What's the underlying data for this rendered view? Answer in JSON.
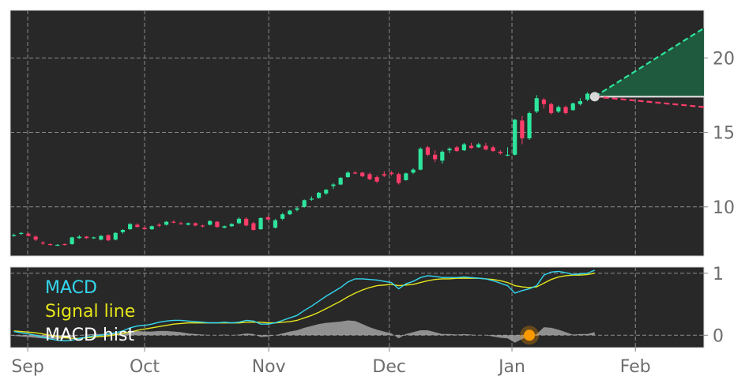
{
  "chart_data": [
    {
      "type": "candlestick",
      "x_ticks": [
        "Sep",
        "Oct",
        "Nov",
        "Dec",
        "Jan",
        "Feb"
      ],
      "y_ticks": [
        10,
        15,
        20
      ],
      "ylim": [
        6.7,
        23.2
      ],
      "grid": true,
      "colors": {
        "up": "#2ee59d",
        "down": "#ff3d6a",
        "background": "#282828",
        "grid": "#8a8a8a",
        "projection_up": "#2ee59d",
        "projection_down": "#ff3d6a",
        "projection_fill": "#1f5a3e"
      },
      "candles": [
        [
          8.1,
          8.2,
          8.0,
          8.1
        ],
        [
          8.2,
          8.3,
          8.1,
          8.25
        ],
        [
          8.2,
          8.25,
          8.0,
          8.05
        ],
        [
          8.0,
          8.1,
          7.7,
          7.8
        ],
        [
          7.6,
          7.7,
          7.45,
          7.55
        ],
        [
          7.5,
          7.55,
          7.4,
          7.45
        ],
        [
          7.45,
          7.5,
          7.4,
          7.45
        ],
        [
          7.5,
          7.55,
          7.4,
          7.45
        ],
        [
          7.5,
          8.0,
          7.45,
          7.95
        ],
        [
          7.9,
          8.1,
          7.85,
          8.0
        ],
        [
          8.0,
          8.05,
          7.85,
          7.9
        ],
        [
          7.95,
          8.0,
          7.85,
          7.95
        ],
        [
          7.8,
          8.1,
          7.75,
          8.05
        ],
        [
          8.1,
          8.15,
          7.7,
          7.75
        ],
        [
          7.8,
          8.3,
          7.75,
          8.25
        ],
        [
          8.3,
          8.5,
          8.2,
          8.45
        ],
        [
          8.5,
          8.9,
          8.45,
          8.85
        ],
        [
          8.8,
          8.9,
          8.6,
          8.65
        ],
        [
          8.6,
          8.7,
          8.45,
          8.5
        ],
        [
          8.5,
          8.75,
          8.45,
          8.7
        ],
        [
          8.8,
          8.9,
          8.65,
          8.75
        ],
        [
          8.8,
          9.05,
          8.75,
          9.0
        ],
        [
          9.0,
          9.1,
          8.9,
          8.95
        ],
        [
          8.9,
          9.0,
          8.8,
          8.85
        ],
        [
          8.8,
          8.95,
          8.75,
          8.9
        ],
        [
          8.9,
          8.95,
          8.7,
          8.75
        ],
        [
          8.75,
          8.8,
          8.6,
          8.7
        ],
        [
          8.8,
          9.1,
          8.75,
          9.05
        ],
        [
          9.0,
          9.05,
          8.6,
          8.65
        ],
        [
          8.6,
          8.75,
          8.55,
          8.7
        ],
        [
          8.7,
          8.9,
          8.65,
          8.85
        ],
        [
          8.9,
          9.3,
          8.85,
          9.2
        ],
        [
          9.2,
          9.3,
          8.7,
          8.75
        ],
        [
          8.9,
          9.0,
          8.4,
          8.45
        ],
        [
          8.5,
          9.3,
          8.45,
          9.25
        ],
        [
          9.3,
          9.4,
          9.1,
          9.15
        ],
        [
          8.6,
          9.2,
          8.55,
          9.1
        ],
        [
          9.2,
          9.6,
          9.1,
          9.5
        ],
        [
          9.5,
          9.8,
          9.45,
          9.75
        ],
        [
          9.8,
          10.0,
          9.7,
          9.9
        ],
        [
          10.0,
          10.5,
          9.95,
          10.45
        ],
        [
          10.5,
          10.7,
          10.4,
          10.55
        ],
        [
          10.6,
          11.0,
          10.55,
          10.95
        ],
        [
          10.9,
          11.2,
          10.8,
          11.15
        ],
        [
          11.4,
          11.6,
          11.2,
          11.5
        ],
        [
          11.5,
          12.0,
          11.45,
          11.95
        ],
        [
          12.0,
          12.4,
          11.95,
          12.3
        ],
        [
          12.3,
          12.4,
          12.2,
          12.25
        ],
        [
          12.3,
          12.35,
          12.0,
          12.05
        ],
        [
          12.2,
          12.3,
          11.8,
          11.85
        ],
        [
          12.0,
          12.1,
          11.6,
          11.7
        ],
        [
          12.2,
          12.4,
          12.0,
          12.1
        ],
        [
          12.3,
          12.4,
          12.1,
          12.2
        ],
        [
          12.2,
          12.3,
          11.5,
          11.6
        ],
        [
          11.8,
          12.3,
          11.75,
          12.25
        ],
        [
          12.3,
          12.6,
          12.2,
          12.5
        ],
        [
          12.5,
          14.0,
          12.45,
          13.9
        ],
        [
          14.0,
          14.1,
          13.4,
          13.5
        ],
        [
          13.5,
          13.8,
          13.0,
          13.2
        ],
        [
          13.1,
          13.8,
          12.9,
          13.7
        ],
        [
          13.8,
          14.0,
          13.6,
          13.9
        ],
        [
          14.0,
          14.1,
          13.7,
          13.75
        ],
        [
          13.8,
          14.3,
          13.75,
          14.2
        ],
        [
          14.1,
          14.3,
          13.9,
          13.95
        ],
        [
          14.0,
          14.3,
          13.95,
          14.2
        ],
        [
          14.1,
          14.3,
          13.8,
          13.85
        ],
        [
          14.0,
          14.1,
          13.7,
          13.75
        ],
        [
          13.7,
          13.8,
          13.5,
          13.6
        ],
        [
          13.5,
          14.0,
          13.4,
          13.5
        ],
        [
          13.5,
          15.9,
          13.45,
          15.85
        ],
        [
          15.8,
          16.1,
          14.2,
          14.6
        ],
        [
          14.6,
          16.4,
          14.5,
          16.3
        ],
        [
          16.4,
          17.5,
          16.3,
          17.3
        ],
        [
          17.2,
          17.3,
          16.6,
          16.9
        ],
        [
          16.9,
          17.0,
          16.2,
          16.3
        ],
        [
          16.4,
          16.8,
          16.3,
          16.7
        ],
        [
          16.7,
          16.8,
          16.2,
          16.3
        ],
        [
          16.5,
          17.0,
          16.45,
          16.95
        ],
        [
          16.9,
          17.3,
          16.8,
          17.1
        ],
        [
          17.2,
          17.7,
          17.1,
          17.6
        ],
        [
          17.6,
          17.7,
          17.3,
          17.4
        ]
      ],
      "last_price": 17.4,
      "projection": {
        "start_index": 80.5,
        "end_index": 106,
        "upper": 22.0,
        "lower": 16.7,
        "level": 17.4
      }
    },
    {
      "type": "line",
      "x_ticks": [
        "Sep",
        "Oct",
        "Nov",
        "Dec",
        "Jan",
        "Feb"
      ],
      "y_ticks": [
        0,
        1
      ],
      "ylim": [
        -0.2,
        1.1
      ],
      "grid": true,
      "series": [
        {
          "name": "MACD",
          "color": "#33d7ef",
          "values": [
            0.06,
            0.04,
            0.02,
            0.0,
            -0.03,
            -0.06,
            -0.08,
            -0.09,
            -0.08,
            -0.05,
            -0.03,
            -0.01,
            0.0,
            0.02,
            0.04,
            0.07,
            0.12,
            0.15,
            0.16,
            0.18,
            0.21,
            0.23,
            0.24,
            0.24,
            0.23,
            0.22,
            0.21,
            0.2,
            0.2,
            0.21,
            0.2,
            0.21,
            0.24,
            0.23,
            0.18,
            0.18,
            0.2,
            0.24,
            0.28,
            0.32,
            0.4,
            0.47,
            0.55,
            0.63,
            0.7,
            0.77,
            0.86,
            0.91,
            0.91,
            0.9,
            0.89,
            0.87,
            0.85,
            0.75,
            0.83,
            0.87,
            0.93,
            0.96,
            0.95,
            0.93,
            0.93,
            0.93,
            0.94,
            0.93,
            0.92,
            0.91,
            0.88,
            0.84,
            0.8,
            0.68,
            0.72,
            0.75,
            0.8,
            0.97,
            1.02,
            1.03,
            1.01,
            0.98,
            0.99,
            1.0,
            1.05
          ]
        },
        {
          "name": "Signal line",
          "color": "#e5e51b",
          "values": [
            0.07,
            0.06,
            0.05,
            0.04,
            0.02,
            0.0,
            -0.02,
            -0.04,
            -0.05,
            -0.05,
            -0.04,
            -0.03,
            -0.02,
            -0.01,
            0.01,
            0.03,
            0.05,
            0.08,
            0.1,
            0.12,
            0.14,
            0.16,
            0.18,
            0.19,
            0.2,
            0.2,
            0.2,
            0.2,
            0.2,
            0.2,
            0.2,
            0.2,
            0.21,
            0.21,
            0.21,
            0.2,
            0.2,
            0.21,
            0.22,
            0.24,
            0.28,
            0.32,
            0.37,
            0.43,
            0.49,
            0.55,
            0.62,
            0.68,
            0.73,
            0.77,
            0.8,
            0.81,
            0.82,
            0.8,
            0.81,
            0.82,
            0.85,
            0.88,
            0.9,
            0.91,
            0.91,
            0.92,
            0.92,
            0.92,
            0.92,
            0.91,
            0.9,
            0.88,
            0.85,
            0.8,
            0.78,
            0.77,
            0.78,
            0.84,
            0.9,
            0.94,
            0.96,
            0.97,
            0.97,
            0.98,
            1.0
          ]
        },
        {
          "name": "MACD hist",
          "color": "#b3b3b3",
          "values": [
            -0.01,
            -0.02,
            -0.03,
            -0.04,
            -0.05,
            -0.06,
            -0.06,
            -0.05,
            -0.03,
            0.0,
            0.01,
            0.02,
            0.02,
            0.03,
            0.03,
            0.04,
            0.07,
            0.07,
            0.06,
            0.06,
            0.07,
            0.07,
            0.06,
            0.05,
            0.03,
            0.02,
            0.01,
            0.0,
            0.0,
            0.01,
            0.0,
            0.01,
            0.03,
            0.02,
            -0.03,
            -0.02,
            0.0,
            0.03,
            0.06,
            0.08,
            0.12,
            0.15,
            0.18,
            0.2,
            0.21,
            0.22,
            0.24,
            0.23,
            0.18,
            0.13,
            0.09,
            0.06,
            0.03,
            -0.05,
            0.02,
            0.05,
            0.08,
            0.08,
            0.05,
            0.02,
            0.02,
            0.01,
            0.02,
            0.01,
            0.0,
            0.0,
            -0.02,
            -0.04,
            -0.05,
            -0.12,
            -0.06,
            -0.02,
            0.02,
            0.13,
            0.12,
            0.09,
            0.05,
            0.01,
            0.02,
            0.02,
            0.05
          ]
        }
      ],
      "marker": {
        "index": 71,
        "value": 0.0,
        "color": "#ff9900"
      }
    }
  ]
}
